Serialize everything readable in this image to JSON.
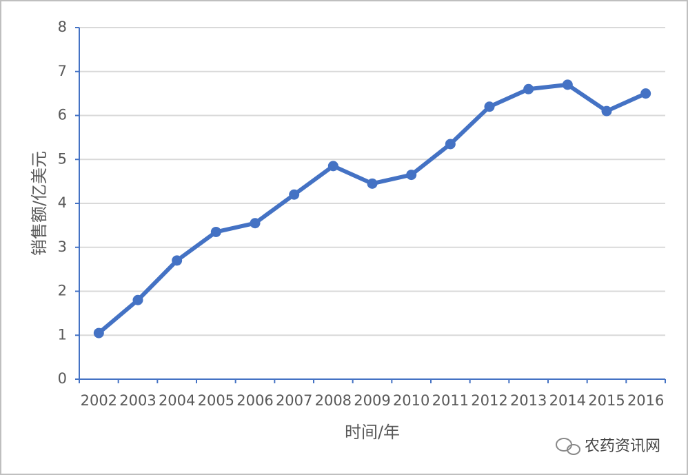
{
  "chart_data": {
    "type": "line",
    "categories": [
      "2002",
      "2003",
      "2004",
      "2005",
      "2006",
      "2007",
      "2008",
      "2009",
      "2010",
      "2011",
      "2012",
      "2013",
      "2014",
      "2015",
      "2016"
    ],
    "series": [
      {
        "color": "#4472c4",
        "values": [
          1.05,
          1.8,
          2.7,
          3.35,
          3.55,
          4.2,
          4.85,
          4.45,
          4.65,
          5.35,
          6.2,
          6.6,
          6.7,
          6.1,
          6.5
        ]
      }
    ],
    "ylim": [
      0,
      8
    ],
    "yticks": [
      0,
      1,
      2,
      3,
      4,
      5,
      6,
      7,
      8
    ],
    "grid": true,
    "xlabel": "时间/年",
    "ylabel": "销售额/亿美元",
    "watermark": "农药资讯网"
  }
}
